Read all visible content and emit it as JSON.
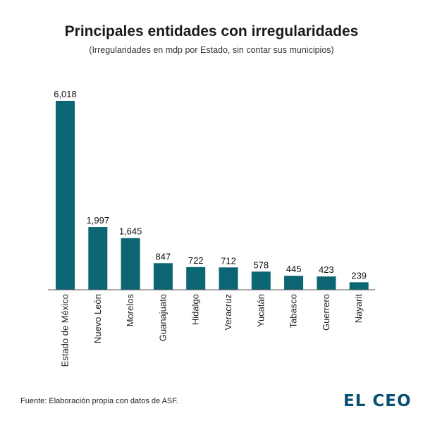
{
  "chart_data": {
    "type": "bar",
    "title": "Principales entidades con irregularidades",
    "subtitle": "(Irregularidades en mdp por Estado, sin contar sus municipios)",
    "categories": [
      "Estado de México",
      "Nuevo León",
      "Morelos",
      "Guanajuato",
      "Hidalgo",
      "Veracruz",
      "Yucatán",
      "Tabasco",
      "Guerrero",
      "Nayarit"
    ],
    "values": [
      6018,
      1997,
      1645,
      847,
      722,
      712,
      578,
      445,
      423,
      239
    ],
    "value_labels": [
      "6,018",
      "1,997",
      "1,645",
      "847",
      "722",
      "712",
      "578",
      "445",
      "423",
      "239"
    ],
    "xlabel": "",
    "ylabel": "",
    "ylim": [
      0,
      6018
    ],
    "bar_color": "#0b6572",
    "grid": false
  },
  "footer": {
    "source": "Fuente: Elaboración propia con datos de ASF.",
    "logo": "EL CEO",
    "logo_color": "#0b4f73"
  }
}
